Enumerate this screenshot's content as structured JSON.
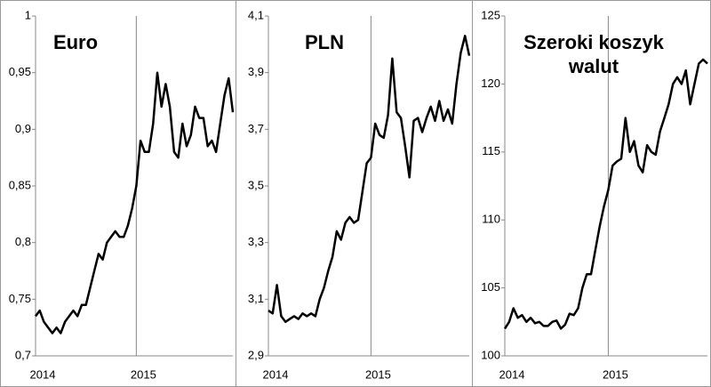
{
  "chart_data": [
    {
      "type": "line",
      "title": "Euro",
      "color": "#000000",
      "grid": true,
      "categories": [
        "2014",
        null,
        null,
        null,
        null,
        null,
        null,
        null,
        null,
        null,
        null,
        null,
        null,
        null,
        null,
        null,
        null,
        null,
        null,
        null,
        null,
        null,
        null,
        null,
        "2015",
        null,
        null,
        null,
        null,
        null,
        null,
        null,
        null,
        null,
        null,
        null,
        null,
        null,
        null,
        null,
        null,
        null,
        null,
        null,
        null,
        null,
        null,
        null
      ],
      "values": [
        0.735,
        0.74,
        0.73,
        0.725,
        0.72,
        0.725,
        0.72,
        0.73,
        0.735,
        0.74,
        0.735,
        0.745,
        0.745,
        0.76,
        0.775,
        0.79,
        0.785,
        0.8,
        0.805,
        0.81,
        0.805,
        0.805,
        0.815,
        0.83,
        0.85,
        0.89,
        0.88,
        0.88,
        0.905,
        0.95,
        0.92,
        0.94,
        0.92,
        0.88,
        0.875,
        0.905,
        0.885,
        0.895,
        0.92,
        0.91,
        0.91,
        0.885,
        0.89,
        0.88,
        0.905,
        0.93,
        0.945,
        0.915
      ],
      "ylim": [
        0.7,
        1
      ],
      "yticks": [
        {
          "value": 0.7,
          "label": "0,7"
        },
        {
          "value": 0.75,
          "label": "0,75"
        },
        {
          "value": 0.8,
          "label": "0,8"
        },
        {
          "value": 0.85,
          "label": "0,85"
        },
        {
          "value": 0.9,
          "label": "0,9"
        },
        {
          "value": 0.95,
          "label": "0,95"
        },
        1
      ]
    },
    {
      "type": "line",
      "title": "PLN",
      "color": "#000000",
      "grid": true,
      "categories": [
        "2014",
        null,
        null,
        null,
        null,
        null,
        null,
        null,
        null,
        null,
        null,
        null,
        null,
        null,
        null,
        null,
        null,
        null,
        null,
        null,
        null,
        null,
        null,
        null,
        "2015",
        null,
        null,
        null,
        null,
        null,
        null,
        null,
        null,
        null,
        null,
        null,
        null,
        null,
        null,
        null,
        null,
        null,
        null,
        null,
        null,
        null,
        null,
        null
      ],
      "values": [
        3.06,
        3.05,
        3.15,
        3.04,
        3.02,
        3.03,
        3.04,
        3.03,
        3.05,
        3.04,
        3.05,
        3.04,
        3.1,
        3.14,
        3.2,
        3.25,
        3.34,
        3.31,
        3.37,
        3.39,
        3.37,
        3.38,
        3.48,
        3.58,
        3.6,
        3.72,
        3.68,
        3.67,
        3.75,
        3.95,
        3.76,
        3.74,
        3.64,
        3.53,
        3.73,
        3.74,
        3.69,
        3.74,
        3.78,
        3.73,
        3.8,
        3.73,
        3.77,
        3.72,
        3.86,
        3.97,
        4.03,
        3.96
      ],
      "ylim": [
        2.9,
        4.1
      ],
      "yticks": [
        {
          "value": 2.9,
          "label": "2,9"
        },
        {
          "value": 3.1,
          "label": "3,1"
        },
        {
          "value": 3.3,
          "label": "3,3"
        },
        {
          "value": 3.5,
          "label": "3,5"
        },
        {
          "value": 3.7,
          "label": "3,7"
        },
        {
          "value": 3.9,
          "label": "3,9"
        },
        {
          "value": 4.1,
          "label": "4,1"
        }
      ]
    },
    {
      "type": "line",
      "title": "Szeroki koszyk walut",
      "color": "#000000",
      "grid": true,
      "categories": [
        "2014",
        null,
        null,
        null,
        null,
        null,
        null,
        null,
        null,
        null,
        null,
        null,
        null,
        null,
        null,
        null,
        null,
        null,
        null,
        null,
        null,
        null,
        null,
        null,
        "2015",
        null,
        null,
        null,
        null,
        null,
        null,
        null,
        null,
        null,
        null,
        null,
        null,
        null,
        null,
        null,
        null,
        null,
        null,
        null,
        null,
        null,
        null,
        null
      ],
      "values": [
        102,
        102.5,
        103.5,
        102.8,
        103,
        102.5,
        102.8,
        102.4,
        102.5,
        102.2,
        102.2,
        102.5,
        102.6,
        102,
        102.3,
        103.1,
        103,
        103.5,
        105,
        106,
        106,
        107.8,
        109.5,
        111,
        112.2,
        114,
        114.3,
        114.5,
        117.5,
        115,
        115.8,
        114,
        113.5,
        115.5,
        115,
        114.8,
        116.5,
        117.5,
        118.5,
        120,
        120.5,
        120,
        121,
        118.5,
        120,
        121.5,
        121.8,
        121.5
      ],
      "ylim": [
        100,
        125
      ],
      "yticks": [
        100,
        105,
        110,
        115,
        120,
        125
      ]
    }
  ]
}
